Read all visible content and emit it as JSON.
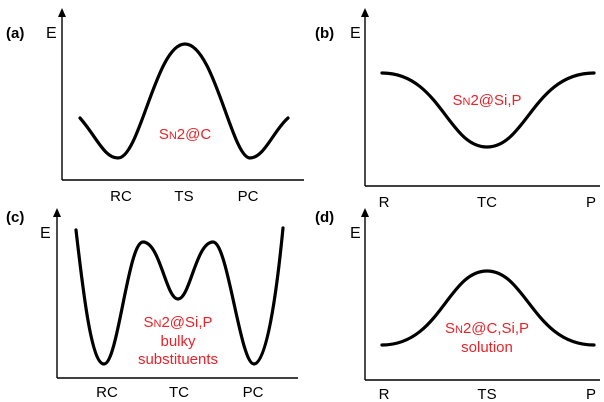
{
  "panels": [
    {
      "letter": "(a)",
      "ylabel": "E",
      "ticks": [
        "RC",
        "TS",
        "PC"
      ],
      "label": {
        "s": "S",
        "n": "N",
        "rest": "2@C",
        "line2": "",
        "line3": ""
      }
    },
    {
      "letter": "(b)",
      "ylabel": "E",
      "ticks": [
        "R",
        "TC",
        "P"
      ],
      "label": {
        "s": "S",
        "n": "N",
        "rest": "2@Si,P",
        "line2": "",
        "line3": ""
      }
    },
    {
      "letter": "(c)",
      "ylabel": "E",
      "ticks": [
        "RC",
        "TC",
        "PC"
      ],
      "label": {
        "s": "S",
        "n": "N",
        "rest": "2@Si,P",
        "line2": "bulky",
        "line3": "substituents"
      }
    },
    {
      "letter": "(d)",
      "ylabel": "E",
      "ticks": [
        "R",
        "TS",
        "P"
      ],
      "label": {
        "s": "S",
        "n": "N",
        "rest": "2@C,Si,P",
        "line2": "solution",
        "line3": ""
      }
    }
  ],
  "colors": {
    "label": "#e8232a",
    "line": "#000000"
  }
}
